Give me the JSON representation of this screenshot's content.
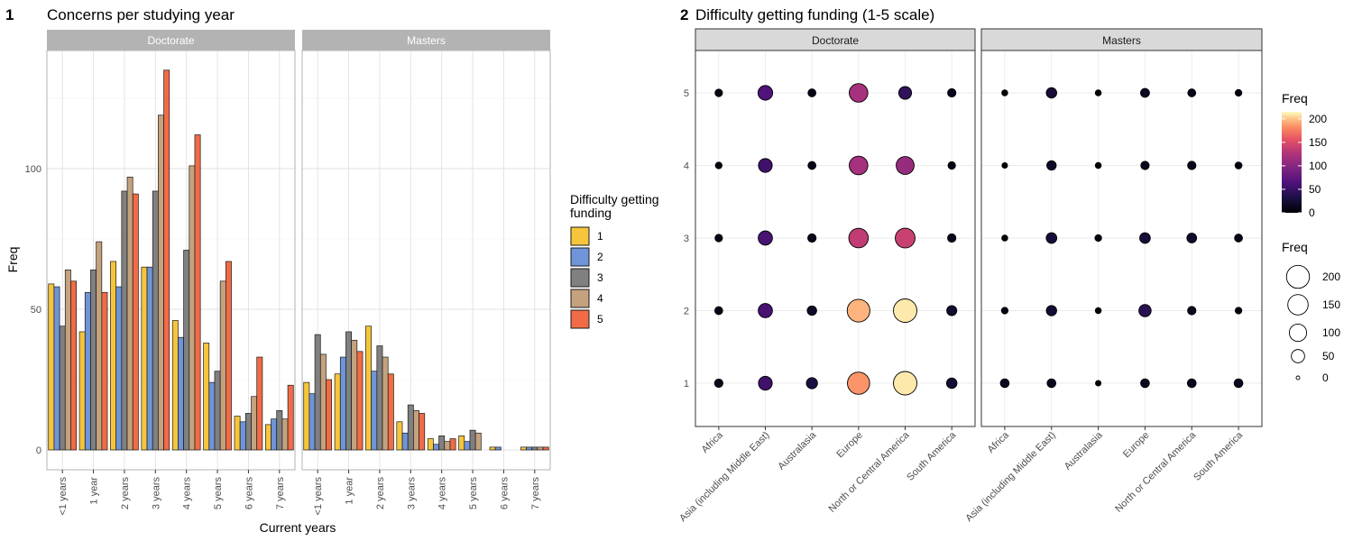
{
  "chart_data": [
    {
      "panel_label": "1",
      "type": "bar",
      "title": "Concerns per studying year",
      "xlabel": "Current years",
      "ylabel": "Freq",
      "ylim": [
        0,
        135
      ],
      "yticks": [
        0,
        50,
        100
      ],
      "categories": [
        "<1 years",
        "1 year",
        "2 years",
        "3 years",
        "4 years",
        "5 years",
        "6 years",
        "7 years"
      ],
      "facets": [
        "Doctorate",
        "Masters"
      ],
      "legend": {
        "title": [
          "Difficulty getting",
          "funding"
        ],
        "entries": [
          "1",
          "2",
          "3",
          "4",
          "5"
        ]
      },
      "colors": [
        "#f6c53c",
        "#6f95d8",
        "#808080",
        "#c4a27e",
        "#f06b46"
      ],
      "data": {
        "Doctorate": [
          [
            59,
            58,
            44,
            64,
            60
          ],
          [
            42,
            56,
            64,
            74,
            56
          ],
          [
            67,
            58,
            92,
            97,
            91
          ],
          [
            65,
            65,
            92,
            119,
            135
          ],
          [
            46,
            40,
            71,
            101,
            112
          ],
          [
            38,
            24,
            28,
            60,
            67
          ],
          [
            12,
            10,
            13,
            19,
            33
          ],
          [
            9,
            11,
            14,
            11,
            23
          ]
        ],
        "Masters": [
          [
            24,
            20,
            41,
            34,
            25
          ],
          [
            27,
            33,
            42,
            39,
            35
          ],
          [
            44,
            28,
            37,
            33,
            27
          ],
          [
            10,
            6,
            16,
            14,
            13
          ],
          [
            4,
            2,
            5,
            3,
            4
          ],
          [
            5,
            3,
            7,
            6,
            0
          ],
          [
            1,
            1,
            0,
            0,
            0
          ],
          [
            1,
            1,
            1,
            1,
            1
          ]
        ]
      }
    },
    {
      "panel_label": "2",
      "type": "scatter",
      "title": "Difficulty getting funding (1-5 scale)",
      "xlabel": "",
      "ylabel": "",
      "ylim": [
        1,
        5
      ],
      "yticks": [
        1,
        2,
        3,
        4,
        5
      ],
      "categories": [
        "Africa",
        "Asia (including Middle East)",
        "Australasia",
        "Europe",
        "North or Central America",
        "South America"
      ],
      "facets": [
        "Doctorate",
        "Masters"
      ],
      "legend_color": {
        "title": "Freq",
        "ticks": [
          200,
          150,
          100,
          50,
          0
        ],
        "range": [
          0,
          215
        ]
      },
      "legend_size": {
        "title": "Freq",
        "entries": [
          200,
          150,
          100,
          50,
          0
        ]
      },
      "data": {
        "Doctorate": [
          [
            12,
            55,
            30,
            185,
            210,
            25
          ],
          [
            10,
            60,
            18,
            195,
            210,
            22
          ],
          [
            8,
            60,
            12,
            135,
            140,
            12
          ],
          [
            5,
            55,
            10,
            120,
            110,
            8
          ],
          [
            8,
            65,
            10,
            120,
            45,
            12
          ]
        ],
        "Masters": [
          [
            14,
            14,
            2,
            14,
            14,
            14
          ],
          [
            5,
            24,
            3,
            40,
            12,
            5
          ],
          [
            3,
            26,
            5,
            26,
            20,
            10
          ],
          [
            2,
            18,
            3,
            12,
            12,
            6
          ],
          [
            3,
            25,
            3,
            15,
            10,
            5
          ]
        ]
      }
    }
  ]
}
